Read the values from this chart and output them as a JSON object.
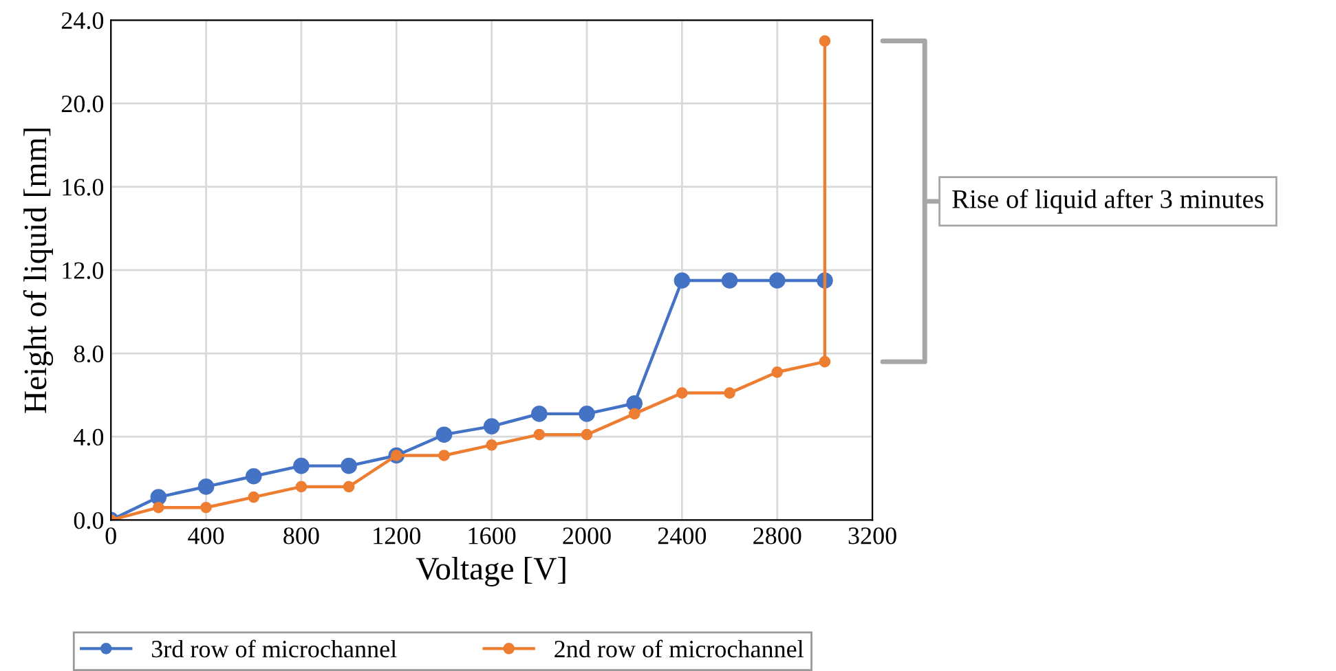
{
  "chart_data": {
    "type": "line",
    "xlabel": "Voltage [V]",
    "ylabel": "Height of liquid [mm]",
    "xlim": [
      0,
      3200
    ],
    "xticks": [
      0,
      400,
      800,
      1200,
      1600,
      2000,
      2400,
      2800,
      3200
    ],
    "ylim": [
      0,
      24
    ],
    "yticks": [
      {
        "value": 0,
        "label": "0.0"
      },
      {
        "value": 4,
        "label": "4.0"
      },
      {
        "value": 8,
        "label": "8.0"
      },
      {
        "value": 12,
        "label": "12.0"
      },
      {
        "value": 16,
        "label": "16.0"
      },
      {
        "value": 20,
        "label": "20.0"
      },
      {
        "value": 24,
        "label": "24.0"
      }
    ],
    "series": [
      {
        "name": "3rd row of microchannel",
        "color": "#4472c4",
        "x": [
          0,
          200,
          400,
          600,
          800,
          1000,
          1200,
          1400,
          1600,
          1800,
          2000,
          2200,
          2400,
          2600,
          2800,
          3000
        ],
        "values": [
          0,
          1.1,
          1.6,
          2.1,
          2.6,
          2.6,
          3.1,
          4.1,
          4.5,
          5.1,
          5.1,
          5.6,
          11.5,
          11.5,
          11.5,
          11.5
        ]
      },
      {
        "name": "2nd row of microchannel",
        "color": "#ed7d31",
        "x": [
          0,
          200,
          400,
          600,
          800,
          1000,
          1200,
          1400,
          1600,
          1800,
          2000,
          2200,
          2400,
          2600,
          2800,
          3000,
          3000
        ],
        "values": [
          0,
          0.6,
          0.6,
          1.1,
          1.6,
          1.6,
          3.1,
          3.1,
          3.6,
          4.1,
          4.1,
          5.1,
          6.1,
          6.1,
          7.1,
          7.6,
          23.0
        ]
      }
    ],
    "annotations": [
      "Rise of liquid after 3 minutes"
    ],
    "grid": true,
    "legend": "bottom",
    "marker": "circle",
    "line_style": "solid"
  }
}
